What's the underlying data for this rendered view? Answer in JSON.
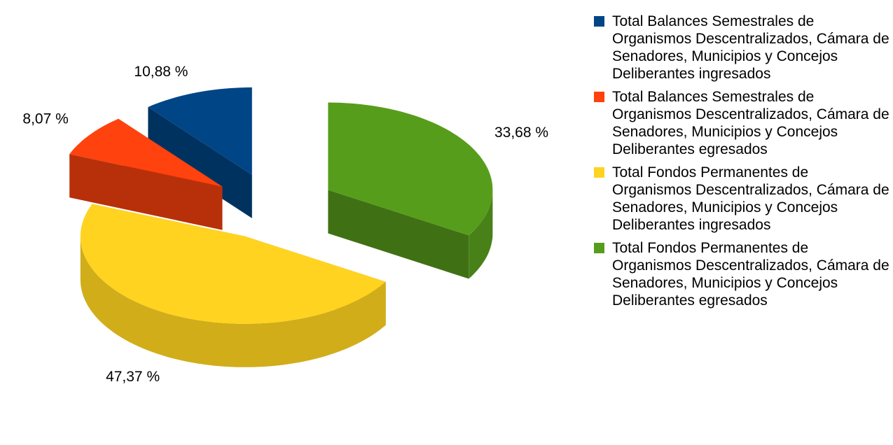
{
  "chart_data": {
    "type": "pie",
    "categories": [
      "Total Balances Semestrales de Organismos Descentralizados, Cámara de Senadores, Municipios y Concejos Deliberantes ingresados",
      "Total Balances Semestrales de Organismos Descentralizados, Cámara de Senadores, Municipios y Concejos Deliberantes egresados",
      "Total Fondos Permanentes de Organismos Descentralizados, Cámara de Senadores, Municipios y Concejos Deliberantes ingresados",
      "Total Fondos Permanentes de Organismos Descentralizados, Cámara de Senadores, Municipios y Concejos Deliberantes egresados"
    ],
    "values": [
      10.88,
      8.07,
      47.37,
      33.68
    ],
    "value_labels": [
      "10,88 %",
      "8,07 %",
      "47,37 %",
      "33,68 %"
    ],
    "colors": [
      "#004586",
      "#ff420e",
      "#ffd320",
      "#579d1c"
    ],
    "legend": "right"
  }
}
